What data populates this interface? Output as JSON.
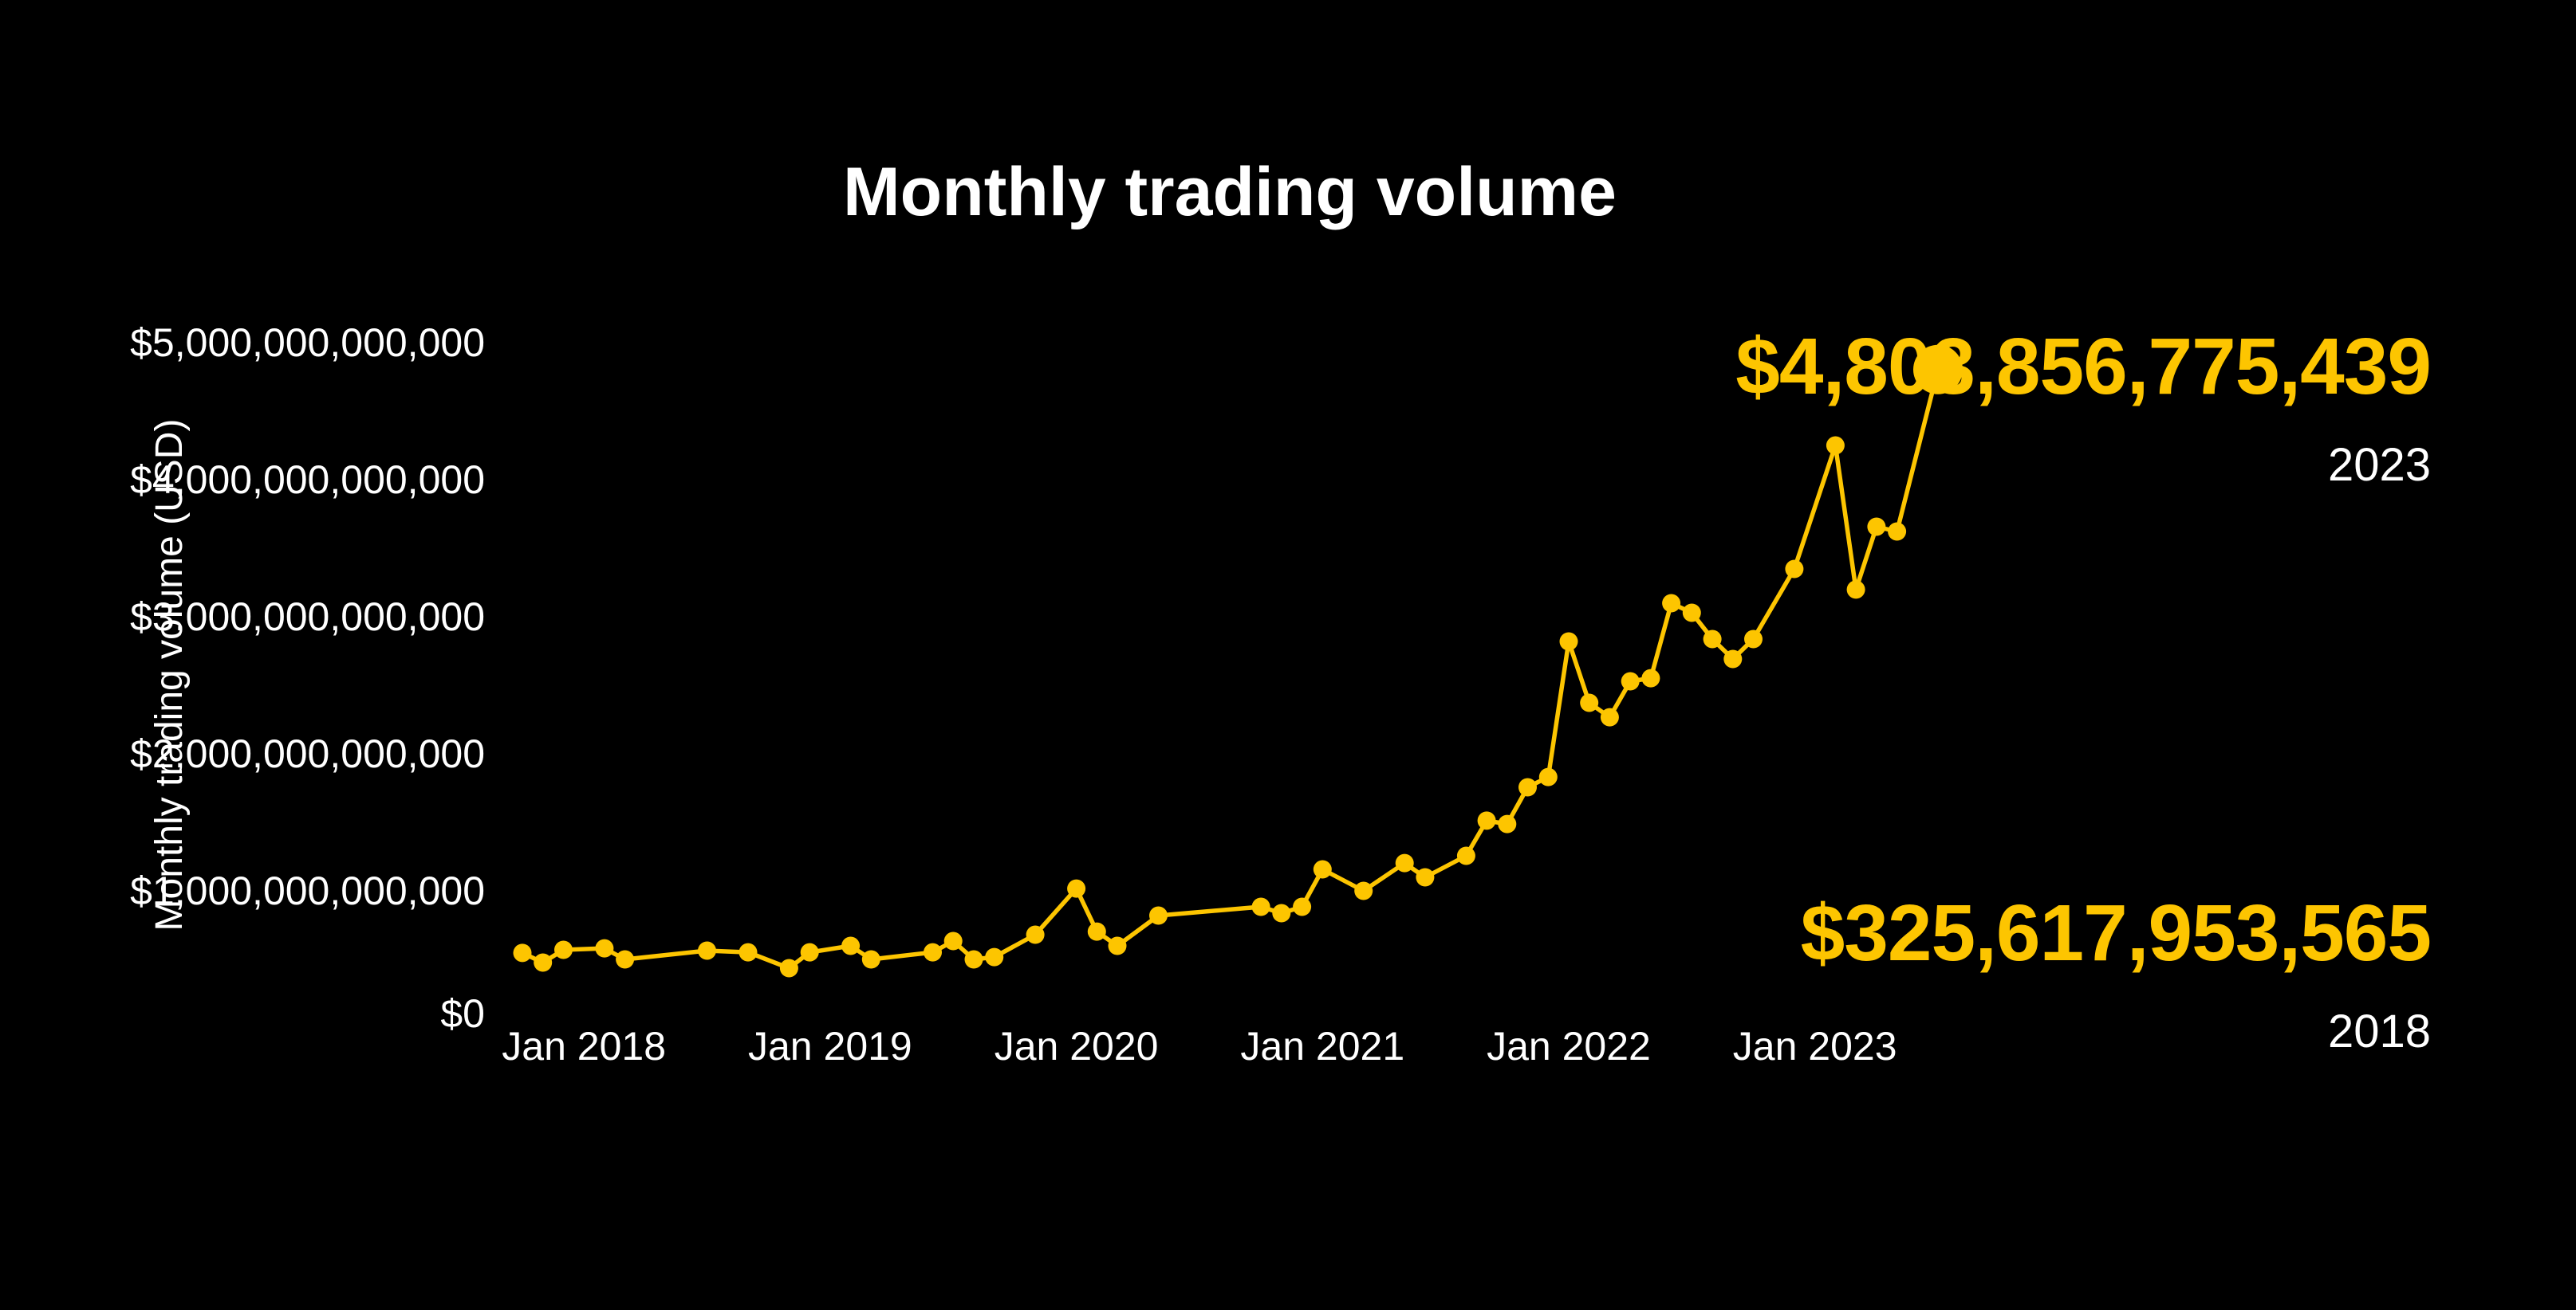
{
  "title": "Monthly trading volume",
  "colors": {
    "background": "#000000",
    "text": "#FFFFFF",
    "accent": "#FDC500"
  },
  "y_axis": {
    "label": "Monthly trading volume (USD)",
    "ticks": [
      {
        "label": "$0",
        "value_billions": 0
      },
      {
        "label": "$1,000,000,000,000",
        "value_billions": 1000
      },
      {
        "label": "$2,000,000,000,000",
        "value_billions": 2000
      },
      {
        "label": "$3,000,000,000,000",
        "value_billions": 3000
      },
      {
        "label": "$4,000,000,000,000",
        "value_billions": 4000
      },
      {
        "label": "$5,000,000,000,000",
        "value_billions": 5000
      }
    ]
  },
  "x_axis": {
    "ticks": [
      {
        "label": "Jan 2018",
        "date": "2018-01"
      },
      {
        "label": "Jan 2019",
        "date": "2019-01"
      },
      {
        "label": "Jan 2020",
        "date": "2020-01"
      },
      {
        "label": "Jan 2021",
        "date": "2021-01"
      },
      {
        "label": "Jan 2022",
        "date": "2022-01"
      },
      {
        "label": "Jan 2023",
        "date": "2023-01"
      }
    ]
  },
  "annotations": {
    "latest": {
      "value": "$4,803,856,775,439",
      "year": "2023"
    },
    "baseline": {
      "value": "$325,617,953,565",
      "year": "2018"
    }
  },
  "chart_data": {
    "type": "line",
    "title": "Monthly trading volume",
    "xlabel": "",
    "ylabel": "Monthly trading volume (USD)",
    "ylim_billions": [
      0,
      5000
    ],
    "x_range": [
      "2017-09",
      "2023-11"
    ],
    "gridlines": false,
    "legend": false,
    "unit": "billions_usd",
    "series_name": "Monthly trading volume (USD)",
    "points": [
      {
        "date": "2017-10",
        "value_billions": 547
      },
      {
        "date": "2017-11",
        "value_billions": 477
      },
      {
        "date": "2017-12",
        "value_billions": 570
      },
      {
        "date": "2018-02",
        "value_billions": 581
      },
      {
        "date": "2018-03",
        "value_billions": 500
      },
      {
        "date": "2018-07",
        "value_billions": 564
      },
      {
        "date": "2018-09",
        "value_billions": 552
      },
      {
        "date": "2018-11",
        "value_billions": 436
      },
      {
        "date": "2018-12",
        "value_billions": 552
      },
      {
        "date": "2019-02",
        "value_billions": 599
      },
      {
        "date": "2019-03",
        "value_billions": 500
      },
      {
        "date": "2019-06",
        "value_billions": 552
      },
      {
        "date": "2019-07",
        "value_billions": 634
      },
      {
        "date": "2019-08",
        "value_billions": 500
      },
      {
        "date": "2019-09",
        "value_billions": 517
      },
      {
        "date": "2019-11",
        "value_billions": 680
      },
      {
        "date": "2020-01",
        "value_billions": 1017
      },
      {
        "date": "2020-02",
        "value_billions": 703
      },
      {
        "date": "2020-03",
        "value_billions": 599
      },
      {
        "date": "2020-05",
        "value_billions": 820
      },
      {
        "date": "2020-10",
        "value_billions": 884
      },
      {
        "date": "2020-11",
        "value_billions": 837
      },
      {
        "date": "2020-12",
        "value_billions": 884
      },
      {
        "date": "2021-01",
        "value_billions": 1157
      },
      {
        "date": "2021-03",
        "value_billions": 1000
      },
      {
        "date": "2021-05",
        "value_billions": 1203
      },
      {
        "date": "2021-06",
        "value_billions": 1099
      },
      {
        "date": "2021-08",
        "value_billions": 1256
      },
      {
        "date": "2021-09",
        "value_billions": 1512
      },
      {
        "date": "2021-10",
        "value_billions": 1488
      },
      {
        "date": "2021-11",
        "value_billions": 1756
      },
      {
        "date": "2021-12",
        "value_billions": 1831
      },
      {
        "date": "2022-01",
        "value_billions": 2820
      },
      {
        "date": "2022-02",
        "value_billions": 2372
      },
      {
        "date": "2022-03",
        "value_billions": 2267
      },
      {
        "date": "2022-04",
        "value_billions": 2529
      },
      {
        "date": "2022-05",
        "value_billions": 2552
      },
      {
        "date": "2022-06",
        "value_billions": 3099
      },
      {
        "date": "2022-07",
        "value_billions": 3029
      },
      {
        "date": "2022-08",
        "value_billions": 2837
      },
      {
        "date": "2022-09",
        "value_billions": 2692
      },
      {
        "date": "2022-10",
        "value_billions": 2837
      },
      {
        "date": "2022-12",
        "value_billions": 3349
      },
      {
        "date": "2023-02",
        "value_billions": 4250
      },
      {
        "date": "2023-03",
        "value_billions": 3198
      },
      {
        "date": "2023-04",
        "value_billions": 3657
      },
      {
        "date": "2023-05",
        "value_billions": 3622
      },
      {
        "date": "2023-07",
        "value_billions": 4803.856775439
      }
    ],
    "highlight_point": {
      "date": "2023-07",
      "value_billions": 4803.856775439,
      "label": "$4,803,856,775,439"
    }
  }
}
